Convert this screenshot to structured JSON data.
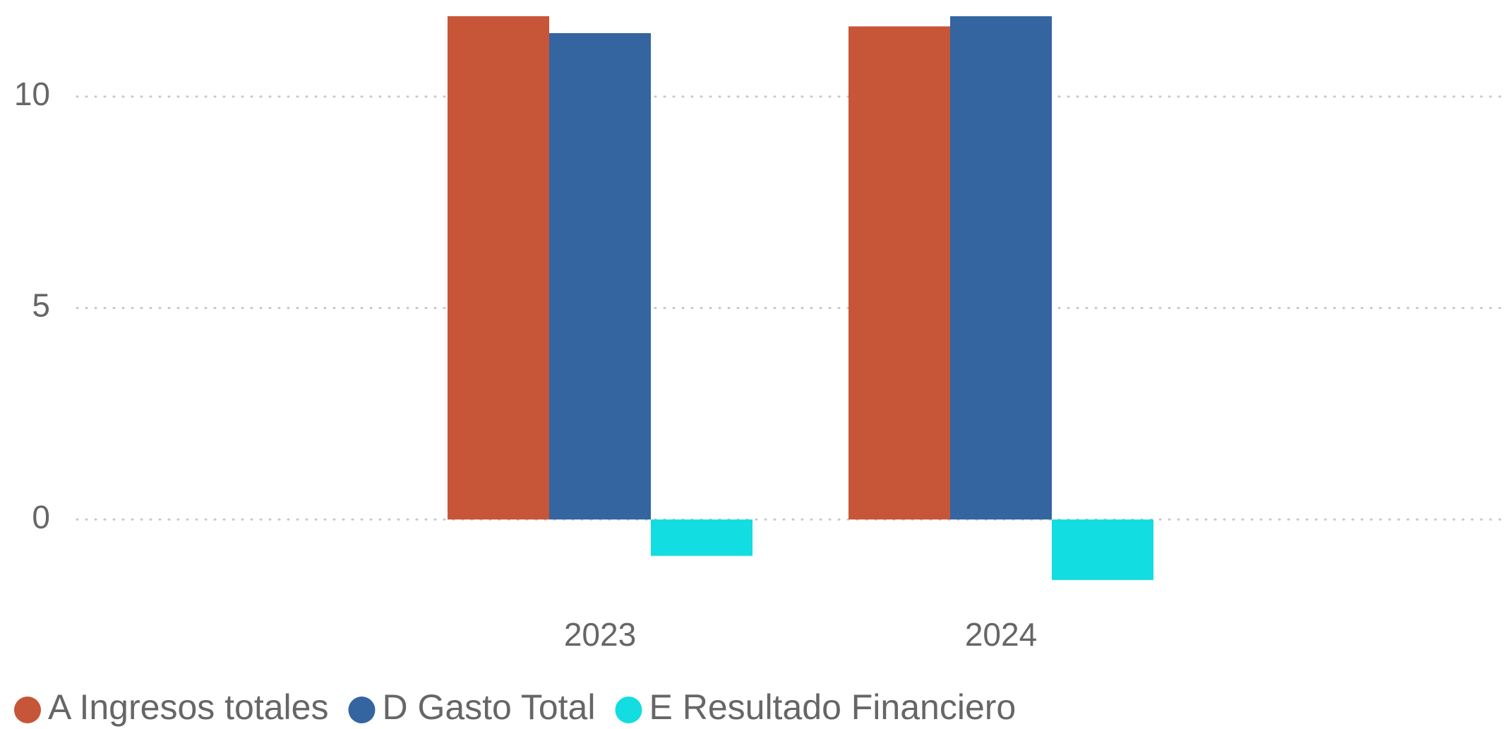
{
  "chart_data": {
    "type": "bar",
    "categories": [
      "2023",
      "2024"
    ],
    "series": [
      {
        "name": "A Ingresos totales",
        "color": "#c65637",
        "values": [
          11.9,
          11.66
        ]
      },
      {
        "name": "D Gasto Total",
        "color": "#3465a1",
        "values": [
          11.5,
          11.9
        ]
      },
      {
        "name": "E Resultado Financiero",
        "color": "#12dde0",
        "values": [
          -0.86,
          -1.43
        ]
      }
    ],
    "ylim": [
      -1.8,
      11.9
    ],
    "yticks": [
      0,
      5,
      10
    ],
    "grid": true,
    "legend": "bottom"
  }
}
